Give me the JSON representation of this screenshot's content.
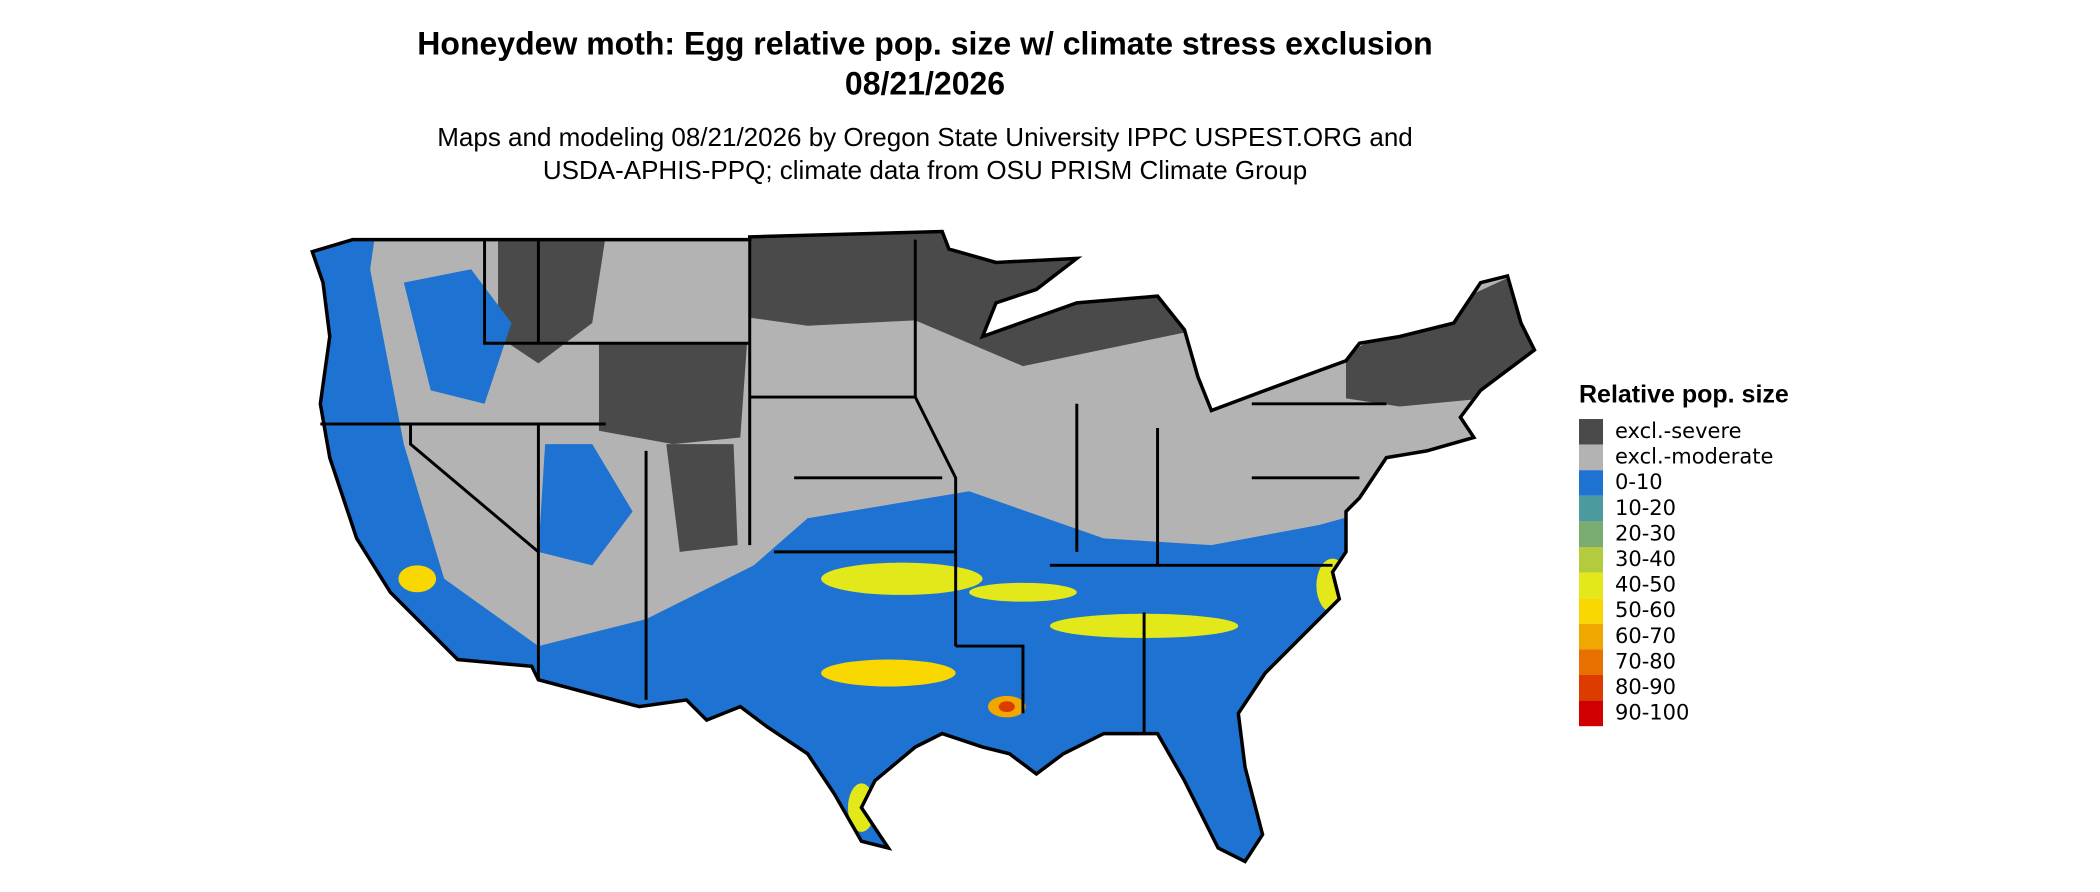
{
  "title": "Honeydew moth: Egg relative pop. size w/ climate stress exclusion",
  "date": "08/21/2026",
  "subtitle": [
    "Maps and modeling 08/21/2026 by Oregon State University IPPC USPEST.ORG and",
    "USDA-APHIS-PPQ; climate data from OSU PRISM Climate Group"
  ],
  "legend": {
    "title": "Relative pop. size",
    "items": [
      {
        "label": "excl.-severe",
        "color": "#4a4a4a"
      },
      {
        "label": "excl.-moderate",
        "color": "#b3b3b3"
      },
      {
        "label": "0-10",
        "color": "#1e73d2"
      },
      {
        "label": "10-20",
        "color": "#4a9a9e"
      },
      {
        "label": "20-30",
        "color": "#7aab70"
      },
      {
        "label": "30-40",
        "color": "#b2cc3e"
      },
      {
        "label": "40-50",
        "color": "#e3e81a"
      },
      {
        "label": "50-60",
        "color": "#f8d800"
      },
      {
        "label": "60-70",
        "color": "#f0a800"
      },
      {
        "label": "70-80",
        "color": "#e87000"
      },
      {
        "label": "80-90",
        "color": "#dc3c00"
      },
      {
        "label": "90-100",
        "color": "#d00000"
      }
    ]
  }
}
